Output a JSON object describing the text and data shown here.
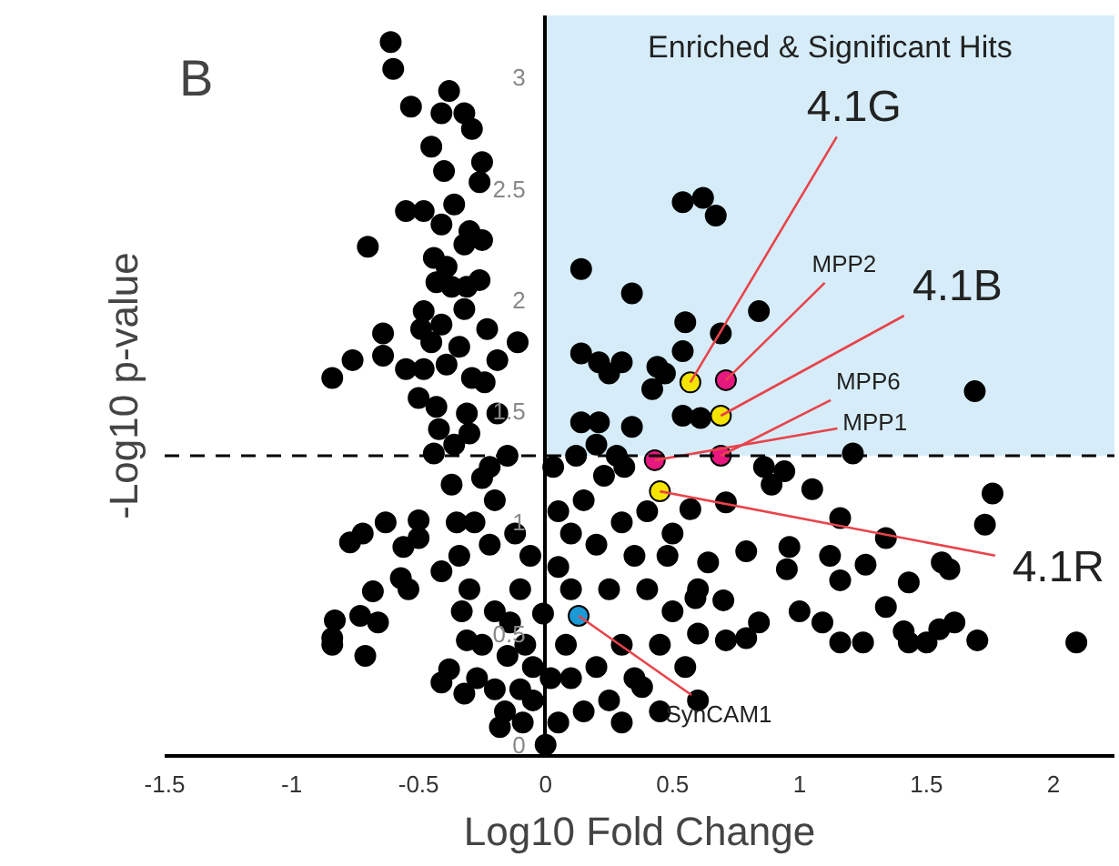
{
  "chart_data": {
    "type": "scatter",
    "xlabel": "Log10 Fold Change",
    "ylabel": "-Log10 p-value",
    "xlim": [
      -1.5,
      2.24
    ],
    "ylim": [
      -0.05,
      3.28
    ],
    "xticks": [
      -1.5,
      -1,
      -0.5,
      0,
      0.5,
      1,
      1.5,
      2
    ],
    "yticks": [
      0,
      0.5,
      1,
      1.5,
      2,
      2.5,
      3
    ],
    "grid": false,
    "marker": "circle",
    "series": [
      {
        "color": "#000000",
        "x": [
          -0.61,
          -0.6,
          -0.38,
          -0.53,
          -0.41,
          -0.32,
          -0.29,
          -0.45,
          -0.4,
          -0.25,
          -0.26,
          -0.55,
          -0.48,
          -0.36,
          -0.41,
          -0.3,
          -0.7,
          -0.32,
          -0.25,
          -0.44,
          -0.39,
          -0.43,
          -0.37,
          -0.31,
          -0.26,
          -0.32,
          -0.48,
          -0.49,
          -0.41,
          -0.64,
          -0.23,
          -0.11,
          -0.45,
          -0.76,
          -0.64,
          -0.84,
          -0.55,
          -0.48,
          -0.39,
          -0.34,
          -0.19,
          -0.29,
          -0.24,
          -0.5,
          -0.43,
          -0.31,
          -0.19,
          -0.44,
          -0.37,
          -0.63,
          -0.77,
          -0.72,
          -0.5,
          -0.56,
          -0.5,
          -0.68,
          -0.57,
          -0.54,
          -0.83,
          -0.73,
          -0.66,
          -0.84,
          -0.84,
          -0.71,
          -0.41,
          -0.38,
          -0.34,
          -0.41,
          -0.31,
          -0.32,
          -0.16,
          -0.09,
          0,
          -0.01,
          -0.3,
          -0.25,
          -0.2,
          -0.15,
          -0.28,
          -0.22,
          -0.12,
          -0.3,
          -0.2,
          -0.1,
          -0.25,
          -0.15,
          -0.08,
          -0.2,
          -0.1,
          -0.05,
          -0.35,
          -0.33,
          -0.27,
          -0.18,
          -0.36,
          -0.42,
          -0.14,
          -0.06,
          -0.22,
          0.54,
          0.62,
          0.67,
          0.14,
          0.34,
          0.84,
          0.55,
          0.69,
          0.54,
          0.14,
          0.21,
          0.3,
          0.25,
          0.44,
          0.47,
          0.42,
          1.69,
          0.14,
          0.21,
          0.34,
          0.54,
          0.61,
          1.21,
          0.23,
          0.31,
          0.86,
          0.94,
          1.05,
          0.89,
          1.76,
          1.73,
          1.34,
          1.16,
          1.12,
          1.26,
          1.56,
          1.59,
          1.43,
          1.34,
          1.16,
          0.96,
          0.95,
          1.0,
          1.09,
          1.25,
          1.41,
          1.43,
          1.5,
          1.55,
          1.61,
          1.7,
          2.09,
          0.84,
          0.79,
          1.16,
          0.71,
          0.64,
          0.57,
          0.71,
          0.79,
          0.38,
          0.59,
          0.48,
          0.05,
          0.1,
          0.05,
          0.15,
          0.2,
          0.3,
          0.35,
          0.25,
          0.4,
          0.5,
          0.6,
          0.45,
          0.3,
          0.2,
          0.1,
          0.35,
          0.25,
          0.15,
          0.05,
          0.08,
          0.5,
          0.6,
          0.7,
          0.55,
          0.1,
          0.02,
          0.4,
          0.45,
          0.3,
          0.6,
          -0.05,
          0.03,
          0.12,
          0.2,
          0.28
        ],
        "values": [
          3.16,
          3.04,
          2.94,
          2.87,
          2.84,
          2.84,
          2.77,
          2.69,
          2.58,
          2.62,
          2.53,
          2.4,
          2.4,
          2.43,
          2.34,
          2.31,
          2.24,
          2.25,
          2.27,
          2.19,
          2.15,
          2.08,
          2.06,
          2.06,
          2.09,
          1.96,
          1.95,
          1.87,
          1.89,
          1.85,
          1.87,
          1.81,
          1.81,
          1.73,
          1.75,
          1.65,
          1.69,
          1.69,
          1.71,
          1.79,
          1.73,
          1.65,
          1.63,
          1.56,
          1.52,
          1.49,
          1.49,
          1.31,
          1.17,
          1.0,
          0.91,
          0.95,
          1.01,
          0.89,
          0.93,
          0.69,
          0.75,
          0.7,
          0.56,
          0.58,
          0.55,
          0.48,
          0.45,
          0.4,
          0.28,
          0.34,
          0.85,
          0.78,
          0.47,
          0.23,
          0.15,
          0.1,
          0,
          0.59,
          1.4,
          1.2,
          1.1,
          1.3,
          1.0,
          0.9,
          0.95,
          0.7,
          0.6,
          0.7,
          0.45,
          0.4,
          0.45,
          0.25,
          0.25,
          0.2,
          1.0,
          0.6,
          0.3,
          0.08,
          1.35,
          1.42,
          0.55,
          0.85,
          1.25,
          2.44,
          2.46,
          2.38,
          2.14,
          2.03,
          1.95,
          1.9,
          1.85,
          1.77,
          1.76,
          1.72,
          1.72,
          1.67,
          1.7,
          1.67,
          1.6,
          1.59,
          1.45,
          1.45,
          1.43,
          1.48,
          1.47,
          1.31,
          1.21,
          1.25,
          1.25,
          1.23,
          1.15,
          1.17,
          1.13,
          0.99,
          0.93,
          1.02,
          0.85,
          0.81,
          0.82,
          0.79,
          0.73,
          0.62,
          0.74,
          0.89,
          0.79,
          0.6,
          0.55,
          0.46,
          0.51,
          0.46,
          0.46,
          0.52,
          0.55,
          0.47,
          0.46,
          0.55,
          0.48,
          0.46,
          0.47,
          0.82,
          1.06,
          1.09,
          0.87,
          0.26,
          0.66,
          0.85,
          1.05,
          0.95,
          0.8,
          1.1,
          0.9,
          1.0,
          0.85,
          0.7,
          0.7,
          0.6,
          0.5,
          0.45,
          0.45,
          0.35,
          0.3,
          0.3,
          0.2,
          0.15,
          0.1,
          0.45,
          0.95,
          0.7,
          0.65,
          0.35,
          0.7,
          0.3,
          1.05,
          0.15,
          0.1,
          0.2,
          0.35,
          1.25,
          1.3,
          1.35,
          1.3
        ]
      },
      {
        "colors": [
          "#f5e400",
          "#e6177f",
          "#f5e400",
          "#e6177f",
          "#e6177f",
          "#f5e400",
          "#1b9ad6"
        ],
        "x": [
          0.57,
          0.71,
          0.69,
          0.69,
          0.43,
          0.45,
          0.13
        ],
        "values": [
          1.63,
          1.64,
          1.48,
          1.3,
          1.28,
          1.14,
          0.58
        ]
      }
    ],
    "ref_lines": [
      {
        "axis": "y",
        "value": 1.3,
        "color": "#000000",
        "line_style": "dashed"
      }
    ],
    "bands": [
      {
        "axis": "y",
        "from": 1.3,
        "to": 3.28,
        "color": "#d6edf9",
        "label": "Enriched & Significant Hits"
      }
    ],
    "annotations": [
      "B",
      {
        "text": "4.1G",
        "x": 0.57,
        "y": 1.63
      },
      {
        "text": "MPP2",
        "x": 0.71,
        "y": 1.64
      },
      {
        "text": "4.1B",
        "x": 0.69,
        "y": 1.48
      },
      {
        "text": "MPP6",
        "x": 0.69,
        "y": 1.3
      },
      {
        "text": "MPP1",
        "x": 0.43,
        "y": 1.28
      },
      {
        "text": "4.1R",
        "x": 0.45,
        "y": 1.14
      },
      {
        "text": "SynCAM1",
        "x": 0.13,
        "y": 0.58
      }
    ]
  }
}
